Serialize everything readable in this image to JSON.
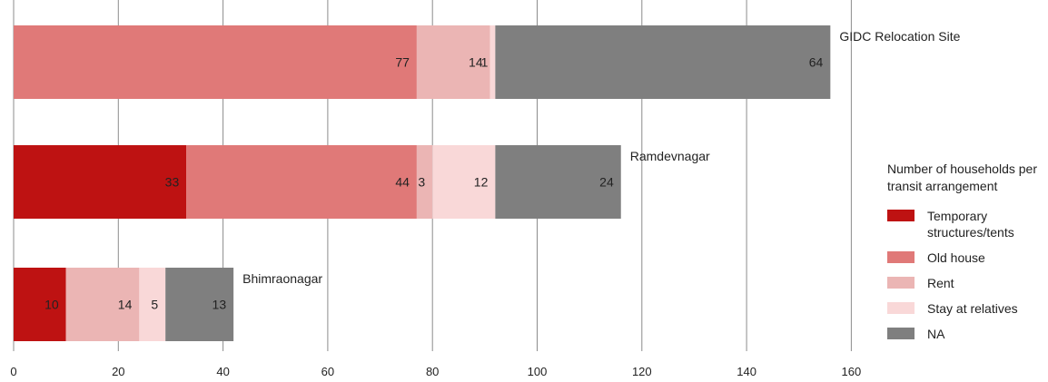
{
  "chart_data": {
    "type": "bar",
    "orientation": "horizontal",
    "stacked": true,
    "categories": [
      "GIDC Relocation Site",
      "Ramdevnagar",
      "Bhimraonagar"
    ],
    "series": [
      {
        "name": "Temporary structures/tents",
        "color": "#be1212",
        "values": [
          0,
          33,
          10
        ]
      },
      {
        "name": "Old house",
        "color": "#e07978",
        "values": [
          77,
          44,
          0
        ]
      },
      {
        "name": "Rent",
        "color": "#ebb5b4",
        "values": [
          14,
          3,
          14
        ]
      },
      {
        "name": "Stay at relatives",
        "color": "#f9d8d8",
        "values": [
          1,
          12,
          5
        ]
      },
      {
        "name": "NA",
        "color": "#7f7f7f",
        "values": [
          64,
          24,
          13
        ]
      }
    ],
    "data_labels": [
      [
        "",
        "77",
        "14",
        "1",
        "64"
      ],
      [
        "33",
        "44",
        "3",
        "12",
        "24"
      ],
      [
        "10",
        "",
        "14",
        "5",
        "13"
      ]
    ],
    "xlim": [
      0,
      160
    ],
    "x_ticks": [
      "0",
      "20",
      "40",
      "60",
      "80",
      "100",
      "120",
      "140",
      "160"
    ],
    "grid": "vertical",
    "legend_position": "right"
  },
  "legend": {
    "title": "Number of households per transit arrangement",
    "items": [
      {
        "label": "Temporary structures/tents",
        "color": "#be1212"
      },
      {
        "label": "Old house",
        "color": "#e07978"
      },
      {
        "label": "Rent",
        "color": "#ebb5b4"
      },
      {
        "label": "Stay at relatives",
        "color": "#f9d8d8"
      },
      {
        "label": "NA",
        "color": "#7f7f7f"
      }
    ]
  }
}
